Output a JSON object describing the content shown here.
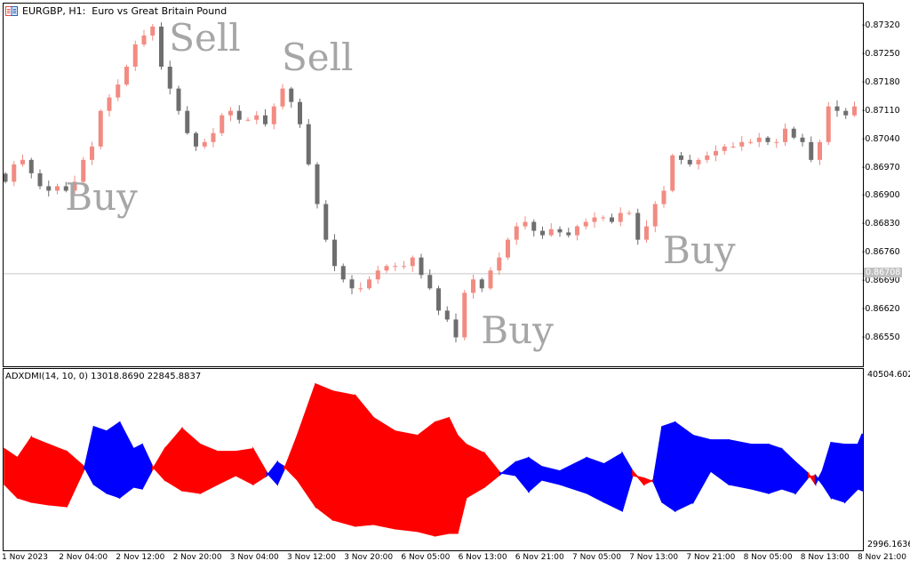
{
  "window": {
    "title": "EURGBP, H1:  Euro vs Great Britain Pound",
    "icon": "chart-window-icon"
  },
  "signals": [
    {
      "label": "Sell",
      "bar": 19
    },
    {
      "label": "Sell",
      "bar": 32
    },
    {
      "label": "Buy",
      "bar": 7
    },
    {
      "label": "Buy",
      "bar": 55
    },
    {
      "label": "Buy",
      "bar": 76
    }
  ],
  "indicator": {
    "label": "ADXDMI(14, 10, 0) 13018.8690 22845.8837",
    "axis_max": "40504.6024",
    "axis_min": "2996.1636"
  },
  "colors": {
    "bull": "#f28b82",
    "bear": "#6e6e6e",
    "ind_red": "#ff0000",
    "ind_blue": "#0000ff",
    "signal_text": "#a6a6a6"
  },
  "chart_data": [
    {
      "type": "candlestick",
      "symbol": "EURGBP",
      "timeframe": "H1",
      "ylim": [
        0.8651,
        0.8738
      ],
      "y_ticks": [
        "0.87320",
        "0.87250",
        "0.87180",
        "0.87110",
        "0.87040",
        "0.86970",
        "0.86900",
        "0.86830",
        "0.86760",
        "0.86690",
        "0.86620",
        "0.86550"
      ],
      "current_price": "0.86708",
      "x_ticks": [
        "1 Nov 2023",
        "2 Nov 04:00",
        "2 Nov 12:00",
        "2 Nov 20:00",
        "3 Nov 04:00",
        "3 Nov 12:00",
        "3 Nov 20:00",
        "6 Nov 05:00",
        "6 Nov 13:00",
        "6 Nov 21:00",
        "7 Nov 05:00",
        "7 Nov 13:00",
        "7 Nov 21:00",
        "8 Nov 05:00",
        "8 Nov 13:00",
        "8 Nov 21:00"
      ],
      "closes": [
        0.86935,
        0.86978,
        0.86989,
        0.86956,
        0.86924,
        0.86913,
        0.86924,
        0.86913,
        0.86935,
        0.86989,
        0.87022,
        0.8711,
        0.87143,
        0.87175,
        0.87219,
        0.87274,
        0.87296,
        0.87318,
        0.87219,
        0.87165,
        0.8711,
        0.87055,
        0.87022,
        0.87033,
        0.87055,
        0.87099,
        0.8711,
        0.87088,
        0.87088,
        0.87099,
        0.87077,
        0.87121,
        0.87165,
        0.87132,
        0.87077,
        0.86978,
        0.8688,
        0.86792,
        0.86727,
        0.86694,
        0.86672,
        0.86672,
        0.86694,
        0.86716,
        0.86727,
        0.86727,
        0.86727,
        0.86748,
        0.86705,
        0.86672,
        0.86617,
        0.86595,
        0.86551,
        0.86661,
        0.86694,
        0.86672,
        0.86716,
        0.86748,
        0.86792,
        0.86825,
        0.86836,
        0.86814,
        0.86803,
        0.86818,
        0.8681,
        0.86803,
        0.86825,
        0.86836,
        0.86847,
        0.86847,
        0.86836,
        0.86858,
        0.86858,
        0.86792,
        0.86825,
        0.8688,
        0.86913,
        0.87,
        0.86989,
        0.86978,
        0.86989,
        0.87,
        0.87011,
        0.87022,
        0.87022,
        0.87033,
        0.87033,
        0.87044,
        0.87033,
        0.87033,
        0.87066,
        0.87044,
        0.87033,
        0.86989,
        0.87033,
        0.87121,
        0.8711,
        0.87099,
        0.87121
      ]
    },
    {
      "type": "area",
      "name": "ADXDMI(14, 10, 0)",
      "ylim": [
        2996.1636,
        40504.6024
      ],
      "fill_rule": "red where first line above second, blue otherwise",
      "points": [
        [
          0,
          23920,
          16130
        ],
        [
          1.5,
          21970,
          13200
        ],
        [
          3.1,
          26460,
          12230
        ],
        [
          5.1,
          24900,
          11640
        ],
        [
          7.2,
          23340,
          11250
        ],
        [
          9.2,
          20020,
          19440
        ],
        [
          10.3,
          16130,
          28800
        ],
        [
          11.8,
          14180,
          27800
        ],
        [
          13.3,
          13200,
          29770
        ],
        [
          14.9,
          15540,
          23920
        ],
        [
          15.9,
          15150,
          24900
        ],
        [
          17.1,
          19440,
          20020
        ],
        [
          18.5,
          23920,
          17100
        ],
        [
          20.5,
          28390,
          14760
        ],
        [
          22.6,
          24900,
          14180
        ],
        [
          24.6,
          23340,
          16130
        ],
        [
          26.7,
          23340,
          18080
        ],
        [
          28.7,
          23920,
          16130
        ],
        [
          30.3,
          18660,
          18080
        ],
        [
          31.5,
          16130,
          21000
        ],
        [
          32.3,
          19440,
          20020
        ],
        [
          33.8,
          26850,
          17100
        ],
        [
          35.9,
          38160,
          11250
        ],
        [
          37.9,
          36600,
          8330
        ],
        [
          40.5,
          35620,
          6960
        ],
        [
          42.6,
          30750,
          7350
        ],
        [
          45.1,
          27800,
          6380
        ],
        [
          47.7,
          26850,
          5790
        ],
        [
          49.7,
          29770,
          4820
        ],
        [
          51.3,
          30750,
          5400
        ],
        [
          52.3,
          26850,
          5400
        ],
        [
          53.3,
          24900,
          13200
        ],
        [
          55.4,
          22950,
          15540
        ],
        [
          57.2,
          18660,
          18270
        ],
        [
          59,
          18080,
          21000
        ],
        [
          60.5,
          14570,
          21970
        ],
        [
          62,
          17100,
          20020
        ],
        [
          64.1,
          16130,
          19050
        ],
        [
          67.2,
          14180,
          21970
        ],
        [
          69.2,
          12230,
          20610
        ],
        [
          71.3,
          10280,
          22950
        ],
        [
          72.5,
          18080,
          19050
        ],
        [
          73.8,
          17490,
          16130
        ],
        [
          74.9,
          16710,
          17100
        ],
        [
          75.9,
          12230,
          28800
        ],
        [
          77.4,
          10280,
          29770
        ],
        [
          79.5,
          12230,
          26850
        ],
        [
          81.5,
          19050,
          25880
        ],
        [
          83.6,
          16130,
          25880
        ],
        [
          86.2,
          15150,
          24900
        ],
        [
          88.2,
          14180,
          24900
        ],
        [
          89.7,
          15150,
          23920
        ],
        [
          91.3,
          14180,
          21000
        ],
        [
          92.8,
          17690,
          18460
        ],
        [
          93.6,
          18080,
          16130
        ],
        [
          94.4,
          16130,
          19050
        ],
        [
          95.4,
          13200,
          25290
        ],
        [
          97,
          12230,
          24900
        ],
        [
          98.5,
          15150,
          24900
        ],
        [
          99,
          14760,
          27240
        ]
      ]
    }
  ]
}
